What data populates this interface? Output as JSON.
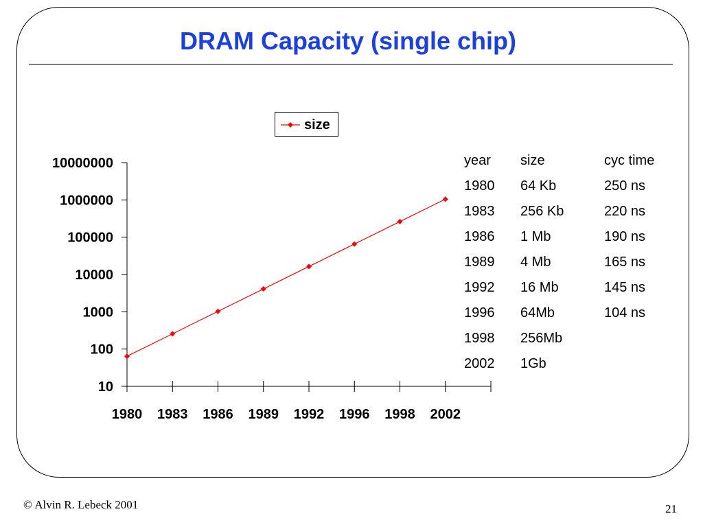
{
  "slide": {
    "title": "DRAM Capacity (single chip)",
    "footer_left": "© Alvin R. Lebeck 2001",
    "page_number": "21"
  },
  "chart_data": {
    "type": "line",
    "title": "",
    "xlabel": "",
    "ylabel": "",
    "categories": [
      "1980",
      "1983",
      "1986",
      "1989",
      "1992",
      "1996",
      "1998",
      "2002"
    ],
    "series": [
      {
        "name": "size",
        "color": "#ff0000",
        "marker": "diamond",
        "values": [
          64,
          256,
          1024,
          4096,
          16384,
          65536,
          262144,
          1048576
        ]
      }
    ],
    "y_scale": "log",
    "ylim": [
      10,
      10000000
    ],
    "y_ticks": [
      "10",
      "100",
      "1000",
      "10000",
      "100000",
      "1000000",
      "10000000"
    ],
    "grid": false,
    "legend_position": "top"
  },
  "table": {
    "headers": [
      "year",
      "size",
      "cyc time"
    ],
    "rows": [
      [
        "1980",
        "64 Kb",
        "250 ns"
      ],
      [
        "1983",
        "256 Kb",
        "220 ns"
      ],
      [
        "1986",
        "1 Mb",
        "190 ns"
      ],
      [
        "1989",
        "4 Mb",
        "165 ns"
      ],
      [
        "1992",
        "16 Mb",
        "145 ns"
      ],
      [
        "1996",
        "64Mb",
        "104 ns"
      ],
      [
        "1998",
        "256Mb",
        ""
      ],
      [
        "2002",
        "1Gb",
        ""
      ]
    ]
  }
}
